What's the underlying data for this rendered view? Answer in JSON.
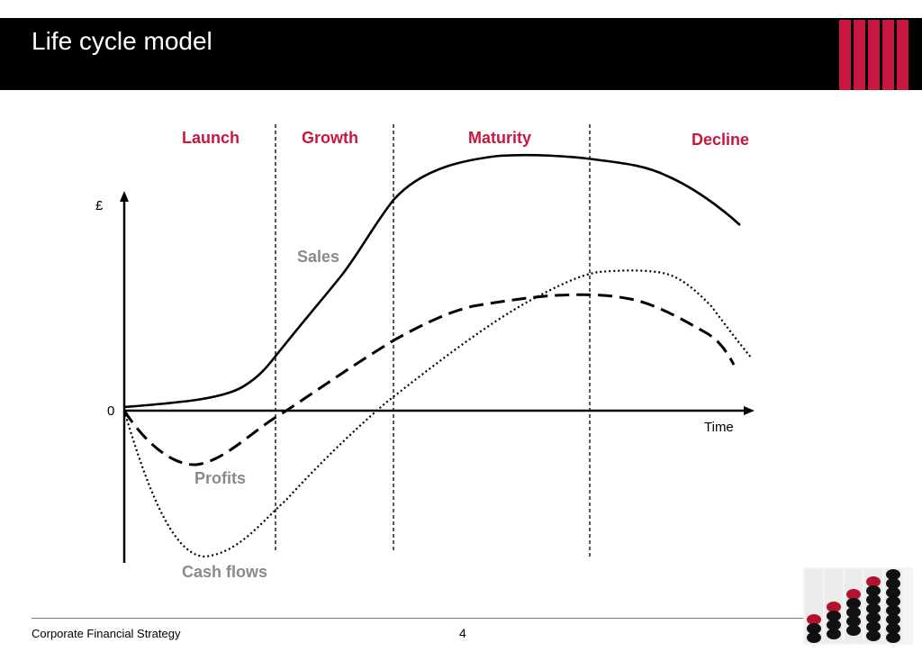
{
  "header": {
    "title": "Life cycle model",
    "accent_color": "#c8173f"
  },
  "chart_data": {
    "type": "diagram",
    "y_axis_label": "£",
    "x_axis_label": "Time",
    "origin_label": "0",
    "phases": [
      "Launch",
      "Growth",
      "Maturity",
      "Decline"
    ],
    "curves": [
      "Sales",
      "Profits",
      "Cash flows"
    ],
    "phase_color": "#c8173f",
    "curve_label_color": "#8a8a8a"
  },
  "footer": {
    "left_text": "Corporate Financial Strategy",
    "page_number": "4"
  },
  "logo": {
    "icon": "coin-stack-bar-chart-icon"
  }
}
